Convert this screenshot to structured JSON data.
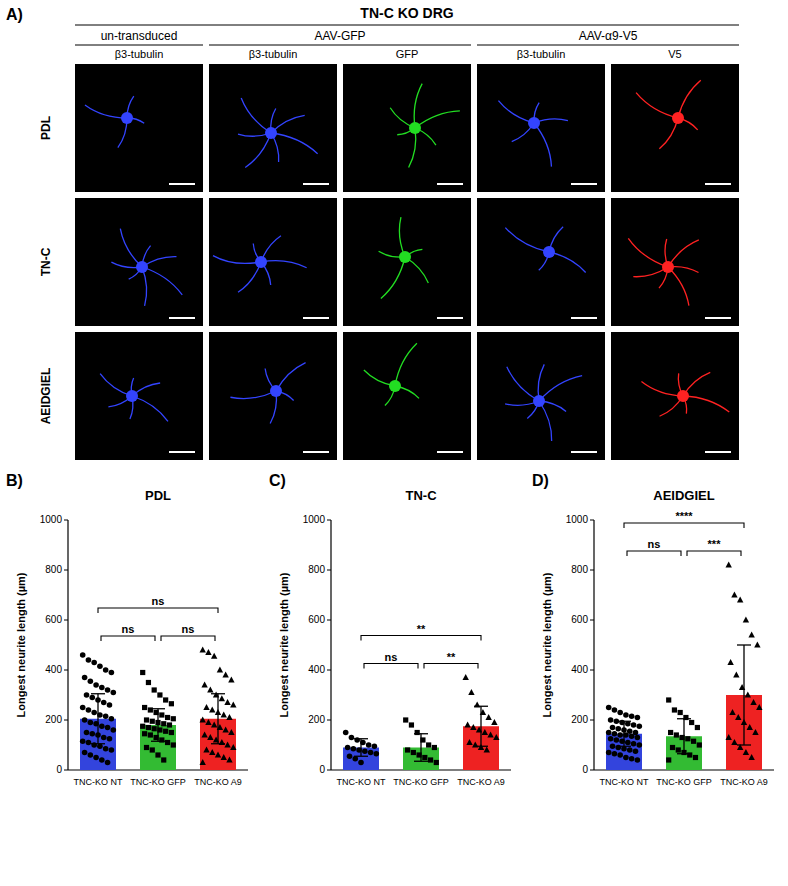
{
  "figure": {
    "panel_label": "A)",
    "title": "TN-C KO DRG",
    "groups": [
      {
        "label": "un-transduced",
        "channels": [
          {
            "label": "β3-tubulin",
            "color": "#3344ff"
          }
        ]
      },
      {
        "label": "AAV-GFP",
        "channels": [
          {
            "label": "β3-tubulin",
            "color": "#3344ff"
          },
          {
            "label": "GFP",
            "color": "#22dd22"
          }
        ]
      },
      {
        "label": "AAV-α9-V5",
        "channels": [
          {
            "label": "β3-tubulin",
            "color": "#3344ff"
          },
          {
            "label": "V5",
            "color": "#ff2222"
          }
        ]
      }
    ],
    "rows": [
      "PDL",
      "TN-C",
      "AEIDGIEL"
    ]
  },
  "chart_data": [
    {
      "type": "bar",
      "panel_label": "B)",
      "title": "PDL",
      "y_label": "Longest neurite length (µm)",
      "categories": [
        "TNC-KO NT",
        "TNC-KO GFP",
        "TNC-KO A9"
      ],
      "values": [
        205,
        180,
        205
      ],
      "errors": [
        100,
        65,
        100
      ],
      "colors": [
        "#3344dd",
        "#33bb33",
        "#ee2222"
      ],
      "marker": [
        "circle",
        "square",
        "triangle"
      ],
      "points": [
        [
          460,
          440,
          430,
          415,
          400,
          390,
          370,
          355,
          340,
          330,
          320,
          310,
          300,
          290,
          280,
          270,
          260,
          250,
          240,
          230,
          220,
          215,
          205,
          200,
          190,
          185,
          175,
          170,
          160,
          150,
          145,
          140,
          130,
          125,
          115,
          110,
          100,
          95,
          85,
          80,
          70,
          60,
          50,
          40,
          30
        ],
        [
          390,
          350,
          320,
          300,
          280,
          265,
          250,
          240,
          230,
          220,
          210,
          205,
          200,
          195,
          190,
          185,
          180,
          175,
          170,
          165,
          160,
          155,
          150,
          145,
          140,
          130,
          120,
          110,
          100,
          90,
          80,
          60,
          40
        ],
        [
          480,
          470,
          455,
          400,
          380,
          360,
          340,
          320,
          300,
          285,
          270,
          260,
          250,
          240,
          230,
          220,
          210,
          200,
          190,
          180,
          170,
          160,
          150,
          140,
          130,
          120,
          110,
          100,
          90,
          80,
          70,
          60,
          50,
          40,
          30
        ]
      ],
      "annotations": [
        {
          "between": [
            "TNC-KO NT",
            "TNC-KO GFP"
          ],
          "label": "ns"
        },
        {
          "between": [
            "TNC-KO GFP",
            "TNC-KO A9"
          ],
          "label": "ns"
        },
        {
          "between": [
            "TNC-KO NT",
            "TNC-KO A9"
          ],
          "label": "ns"
        }
      ],
      "ylim": [
        0,
        1000
      ],
      "yticks": [
        0,
        200,
        400,
        600,
        800,
        1000
      ],
      "grid": false
    },
    {
      "type": "bar",
      "panel_label": "C)",
      "title": "TN-C",
      "y_label": "Longest neurite length (µm)",
      "categories": [
        "TNC-KO NT",
        "TNC-KO GFP",
        "TNC-KO A9"
      ],
      "values": [
        90,
        90,
        175
      ],
      "errors": [
        35,
        55,
        80
      ],
      "colors": [
        "#3344dd",
        "#33bb33",
        "#ee2222"
      ],
      "marker": [
        "circle",
        "square",
        "triangle"
      ],
      "points": [
        [
          150,
          130,
          120,
          110,
          100,
          95,
          90,
          85,
          80,
          75,
          70,
          65,
          55,
          45,
          30
        ],
        [
          200,
          180,
          150,
          120,
          100,
          90,
          80,
          70,
          60,
          50,
          40,
          30
        ],
        [
          370,
          310,
          260,
          230,
          210,
          190,
          180,
          170,
          160,
          150,
          140,
          130,
          110,
          100,
          90,
          80
        ]
      ],
      "annotations": [
        {
          "between": [
            "TNC-KO NT",
            "TNC-KO GFP"
          ],
          "label": "ns"
        },
        {
          "between": [
            "TNC-KO GFP",
            "TNC-KO A9"
          ],
          "label": "**"
        },
        {
          "between": [
            "TNC-KO NT",
            "TNC-KO A9"
          ],
          "label": "**"
        }
      ],
      "ylim": [
        0,
        1000
      ],
      "yticks": [
        0,
        200,
        400,
        600,
        800,
        1000
      ],
      "grid": false
    },
    {
      "type": "bar",
      "panel_label": "D)",
      "title": "AEIDGIEL",
      "y_label": "Longest neurite length (µm)",
      "categories": [
        "TNC-KO NT",
        "TNC-KO GFP",
        "TNC-KO A9"
      ],
      "values": [
        145,
        135,
        300
      ],
      "errors": [
        50,
        70,
        200
      ],
      "colors": [
        "#3344dd",
        "#33bb33",
        "#ee2222"
      ],
      "marker": [
        "circle",
        "square",
        "triangle"
      ],
      "points": [
        [
          250,
          240,
          230,
          220,
          215,
          210,
          200,
          195,
          190,
          185,
          180,
          175,
          170,
          165,
          160,
          155,
          150,
          150,
          145,
          140,
          140,
          135,
          130,
          125,
          120,
          115,
          110,
          105,
          100,
          95,
          90,
          85,
          80,
          75,
          70,
          65,
          60,
          50,
          45,
          40
        ],
        [
          280,
          240,
          230,
          210,
          190,
          170,
          150,
          140,
          130,
          125,
          115,
          100,
          90,
          80,
          70,
          60,
          50,
          40
        ],
        [
          820,
          700,
          680,
          600,
          540,
          500,
          430,
          380,
          330,
          300,
          270,
          250,
          230,
          210,
          190,
          170,
          150,
          130,
          110,
          90,
          70,
          50
        ]
      ],
      "annotations": [
        {
          "between": [
            "TNC-KO NT",
            "TNC-KO GFP"
          ],
          "label": "ns"
        },
        {
          "between": [
            "TNC-KO GFP",
            "TNC-KO A9"
          ],
          "label": "***"
        },
        {
          "between": [
            "TNC-KO NT",
            "TNC-KO A9"
          ],
          "label": "****"
        }
      ],
      "ylim": [
        0,
        1000
      ],
      "yticks": [
        0,
        200,
        400,
        600,
        800,
        1000
      ],
      "grid": false
    }
  ]
}
